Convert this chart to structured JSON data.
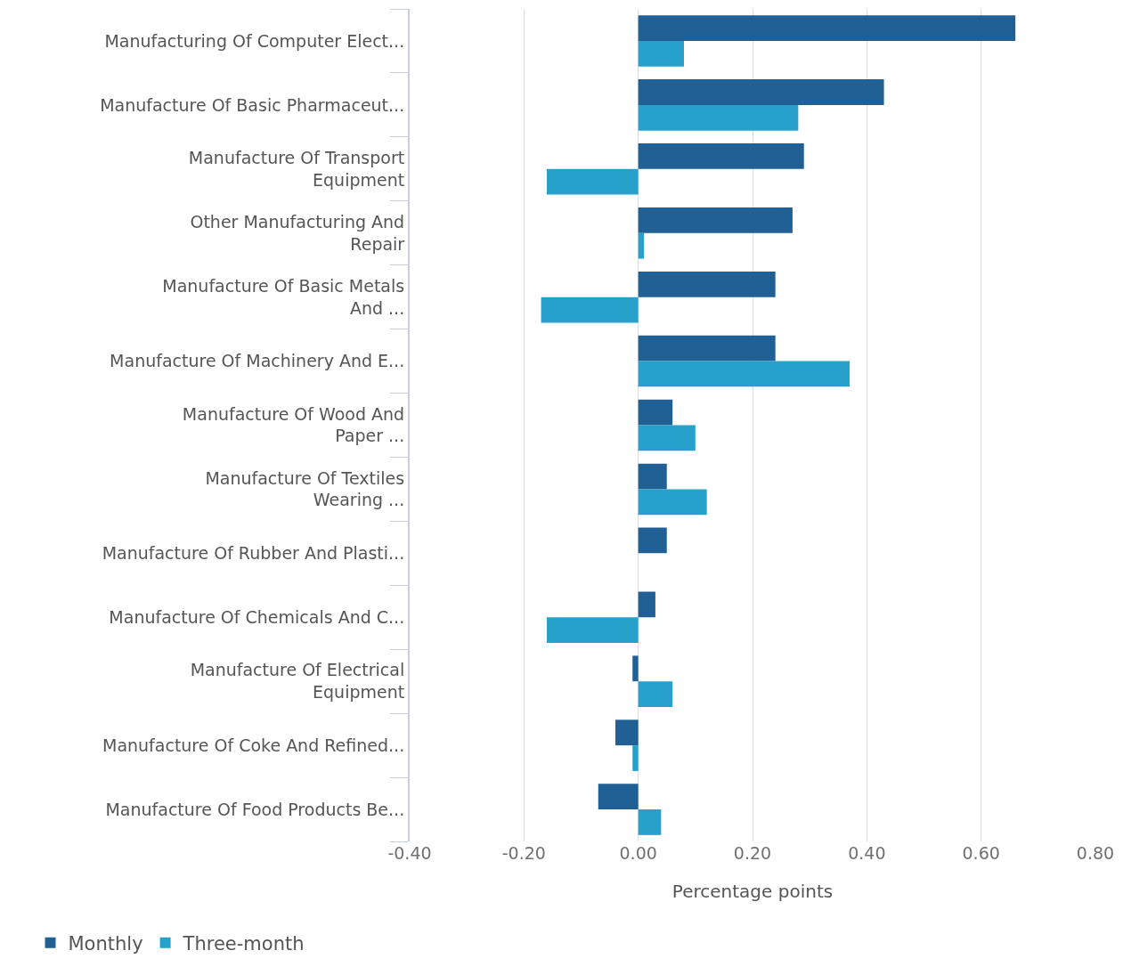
{
  "chart_data": {
    "type": "bar",
    "orientation": "horizontal",
    "xlabel": "Percentage points",
    "categories": [
      "Manufacturing Of Computer Elect...",
      "Manufacture Of Basic Pharmaceut...",
      "Manufacture Of Transport Equipment",
      "Other Manufacturing And Repair",
      "Manufacture Of Basic Metals And ...",
      "Manufacture Of Machinery And E...",
      "Manufacture Of Wood And Paper ...",
      "Manufacture Of Textiles Wearing ...",
      "Manufacture Of Rubber And Plasti...",
      "Manufacture Of Chemicals And C...",
      "Manufacture Of Electrical Equipment",
      "Manufacture Of Coke And Refined...",
      "Manufacture Of Food Products Be..."
    ],
    "series": [
      {
        "name": "Monthly",
        "color": "#206095",
        "values": [
          0.66,
          0.43,
          0.29,
          0.27,
          0.24,
          0.24,
          0.06,
          0.05,
          0.05,
          0.03,
          -0.01,
          -0.04,
          -0.07
        ]
      },
      {
        "name": "Three-month",
        "color": "#27a0cc",
        "values": [
          0.08,
          0.28,
          -0.16,
          0.01,
          -0.17,
          0.37,
          0.1,
          0.12,
          0.0,
          -0.16,
          0.06,
          -0.01,
          0.04
        ]
      }
    ],
    "xlim": [
      -0.4,
      0.8
    ],
    "xticks": [
      {
        "value": -0.4,
        "label": "-0.40"
      },
      {
        "value": -0.2,
        "label": "-0.20"
      },
      {
        "value": 0,
        "label": "0.00"
      },
      {
        "value": 0.2,
        "label": "0.20"
      },
      {
        "value": 0.4,
        "label": "0.40"
      },
      {
        "value": 0.6,
        "label": "0.60"
      },
      {
        "value": 0.8,
        "label": "0.80"
      }
    ],
    "grid": "x",
    "legend": "bottom left"
  }
}
